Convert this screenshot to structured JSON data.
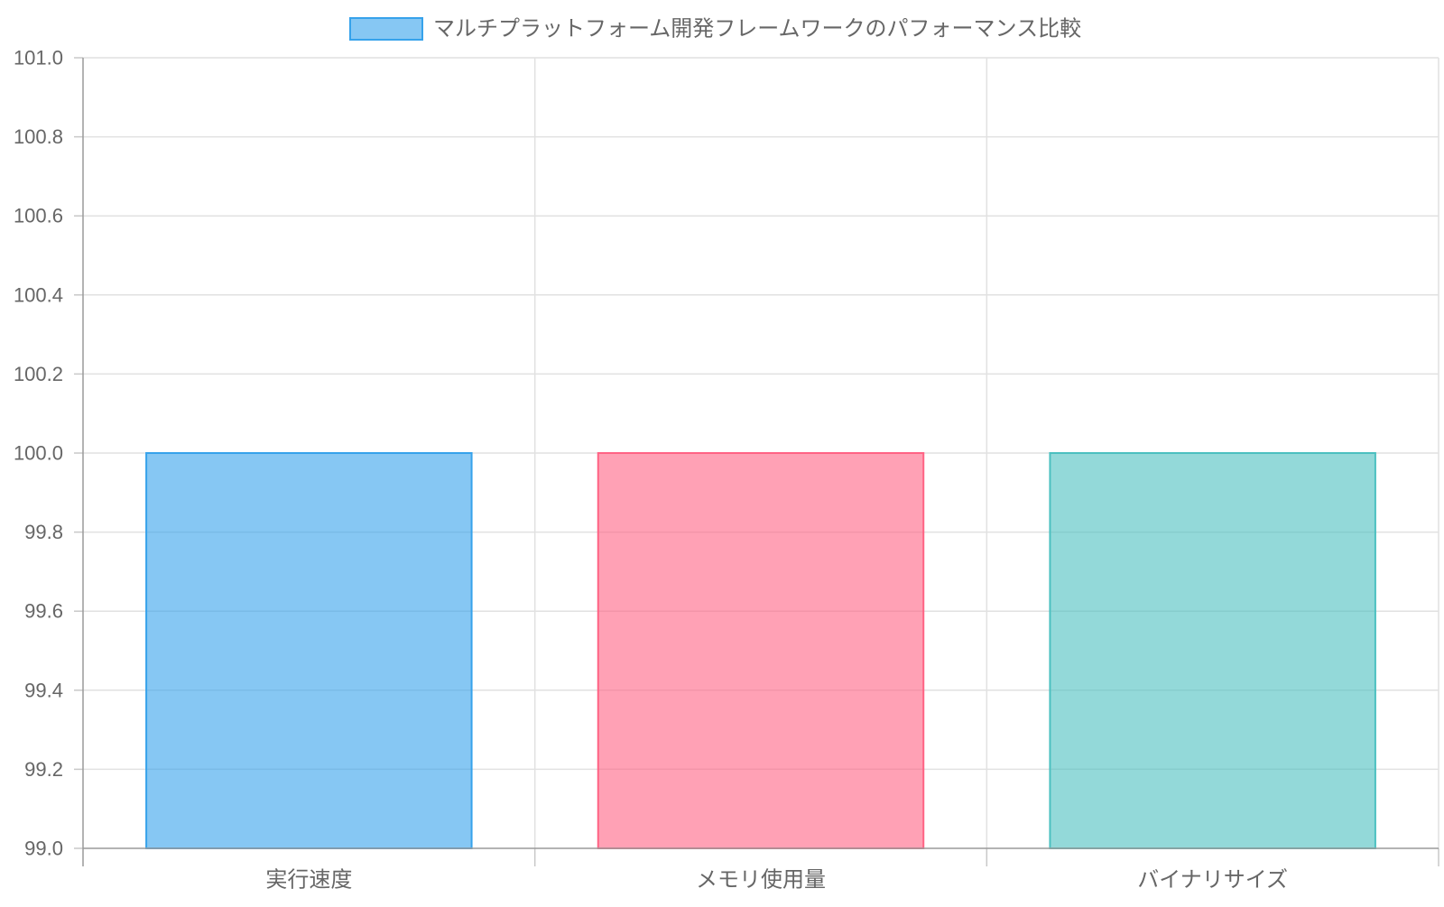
{
  "chart_data": {
    "type": "bar",
    "legend": {
      "label": "マルチプラットフォーム開発フレームワークのパフォーマンス比較",
      "position": "top",
      "swatch_color": "#36a2eb"
    },
    "categories": [
      "実行速度",
      "メモリ使用量",
      "バイナリサイズ"
    ],
    "series": [
      {
        "name": "マルチプラットフォーム開発フレームワークのパフォーマンス比較",
        "values": [
          100,
          100,
          100
        ]
      }
    ],
    "bar_colors": [
      {
        "fill": "rgba(54, 162, 235, 0.6)",
        "stroke": "#36a2eb"
      },
      {
        "fill": "rgba(255, 99, 132, 0.6)",
        "stroke": "#ff6384"
      },
      {
        "fill": "rgba(75, 192, 192, 0.6)",
        "stroke": "#4bc0c0"
      }
    ],
    "ylim": [
      99.0,
      101.0
    ],
    "y_ticks": [
      "99.0",
      "99.2",
      "99.4",
      "99.6",
      "99.8",
      "100.0",
      "100.2",
      "100.4",
      "100.6",
      "100.8",
      "101.0"
    ],
    "grid": true,
    "xlabel": "",
    "ylabel": ""
  }
}
